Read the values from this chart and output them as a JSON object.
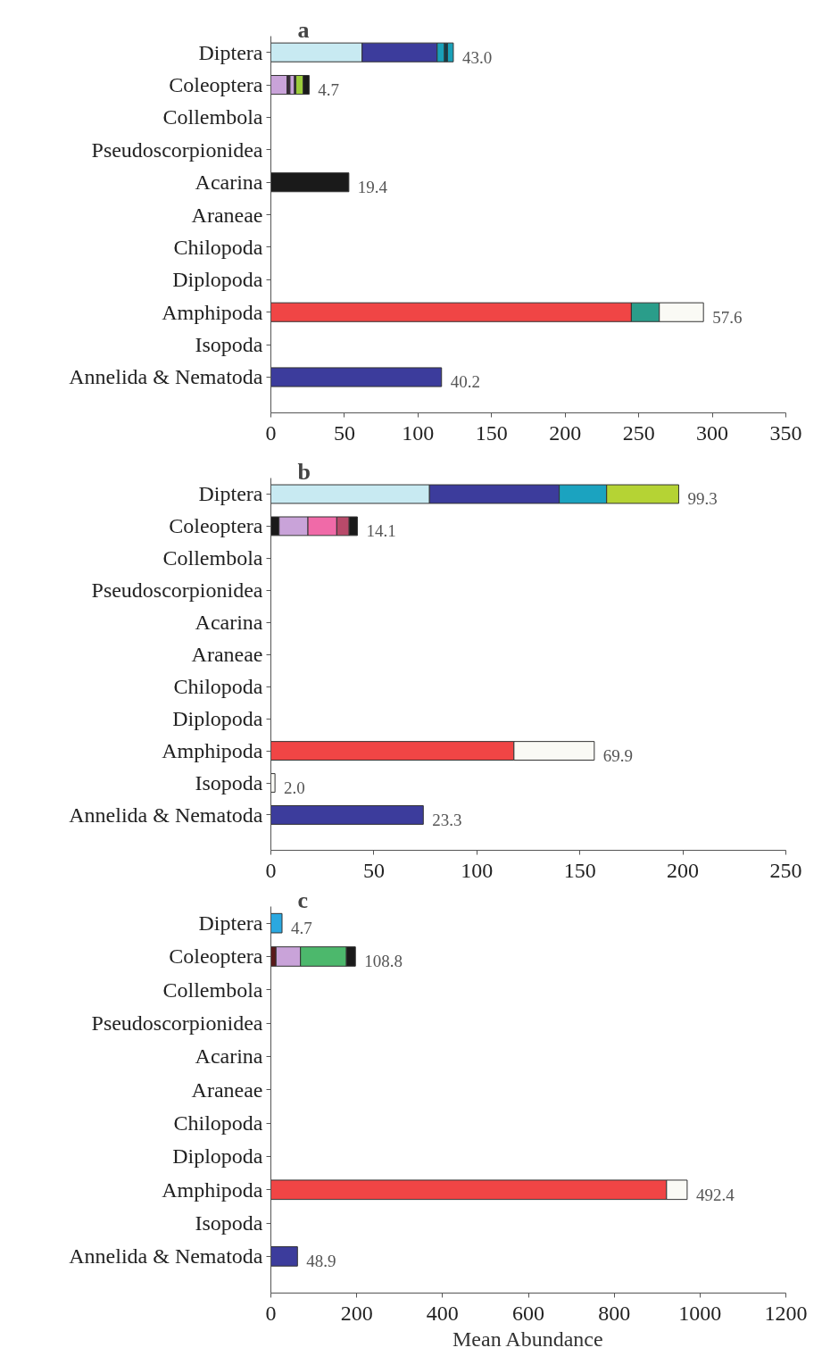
{
  "chart_data": [
    {
      "type": "bar",
      "orientation": "horizontal",
      "stacked": true,
      "title": "a",
      "categories": [
        "Diptera",
        "Coleoptera",
        "Collembola",
        "Pseudoscorpionidea",
        "Acarina",
        "Araneae",
        "Chilopoda",
        "Diplopoda",
        "Amphipoda",
        "Isopoda",
        "Annelida & Nematoda"
      ],
      "xlim": [
        0,
        350
      ],
      "xticks": [
        0,
        50,
        100,
        150,
        200,
        250,
        300,
        350
      ],
      "grid": false,
      "series": [
        {
          "color": "#c8eaf2",
          "values": [
            62,
            null,
            null,
            null,
            null,
            null,
            null,
            null,
            null,
            null,
            null
          ]
        },
        {
          "color": "#3c3c9c",
          "values": [
            51,
            null,
            null,
            null,
            null,
            null,
            null,
            null,
            null,
            null,
            116
          ]
        },
        {
          "color": "#1aa0b8",
          "values": [
            5,
            null,
            null,
            null,
            null,
            null,
            null,
            null,
            null,
            null,
            null
          ]
        },
        {
          "color": "#0f3f4f",
          "values": [
            2,
            null,
            null,
            null,
            null,
            null,
            null,
            null,
            null,
            null,
            null
          ]
        },
        {
          "color": "#1aa0b8",
          "values": [
            4,
            null,
            null,
            null,
            null,
            null,
            null,
            null,
            null,
            null,
            null
          ]
        },
        {
          "color": "#c9a3d9",
          "values": [
            null,
            11,
            null,
            null,
            null,
            null,
            null,
            null,
            null,
            null,
            null
          ]
        },
        {
          "color": "#3a2a3a",
          "values": [
            null,
            2,
            null,
            null,
            null,
            null,
            null,
            null,
            null,
            null,
            null
          ]
        },
        {
          "color": "#c9a3d9",
          "values": [
            null,
            3,
            null,
            null,
            null,
            null,
            null,
            null,
            null,
            null,
            null
          ]
        },
        {
          "color": "#3a2a3a",
          "values": [
            null,
            1,
            null,
            null,
            null,
            null,
            null,
            null,
            null,
            null,
            null
          ]
        },
        {
          "color": "#9ccc3c",
          "values": [
            null,
            5,
            null,
            null,
            null,
            null,
            null,
            null,
            null,
            null,
            null
          ]
        },
        {
          "color": "#1a1a1a",
          "values": [
            null,
            4,
            null,
            null,
            53,
            null,
            null,
            null,
            null,
            null,
            null
          ]
        },
        {
          "color": "#f04545",
          "values": [
            null,
            null,
            null,
            null,
            null,
            null,
            null,
            null,
            245,
            null,
            null
          ]
        },
        {
          "color": "#2a9d8a",
          "values": [
            null,
            null,
            null,
            null,
            null,
            null,
            null,
            null,
            19,
            null,
            null
          ]
        },
        {
          "color": "#fafaf5",
          "values": [
            null,
            null,
            null,
            null,
            null,
            null,
            null,
            null,
            30,
            null,
            null
          ]
        }
      ],
      "annotations": [
        {
          "text": "43.0",
          "x": 124,
          "y": "Diptera"
        },
        {
          "text": "4.7",
          "x": 26,
          "y": "Coleoptera"
        },
        {
          "text": "19.4",
          "x": 53,
          "y": "Acarina"
        },
        {
          "text": "57.6",
          "x": 294,
          "y": "Amphipoda"
        },
        {
          "text": "40.2",
          "x": 116,
          "y": "Annelida & Nematoda"
        }
      ]
    },
    {
      "type": "bar",
      "orientation": "horizontal",
      "stacked": true,
      "title": "b",
      "categories": [
        "Diptera",
        "Coleoptera",
        "Collembola",
        "Pseudoscorpionidea",
        "Acarina",
        "Araneae",
        "Chilopoda",
        "Diplopoda",
        "Amphipoda",
        "Isopoda",
        "Annelida & Nematoda"
      ],
      "xlim": [
        0,
        250
      ],
      "xticks": [
        0,
        50,
        100,
        150,
        200,
        250
      ],
      "grid": false,
      "series": [
        {
          "color": "#1a1a1a",
          "values": [
            null,
            4,
            null,
            null,
            null,
            null,
            null,
            null,
            null,
            null,
            null
          ]
        },
        {
          "color": "#c8eaf2",
          "values": [
            77,
            null,
            null,
            null,
            null,
            null,
            null,
            null,
            null,
            null,
            null
          ]
        },
        {
          "color": "#3c3c9c",
          "values": [
            63,
            null,
            null,
            null,
            null,
            null,
            null,
            null,
            null,
            null,
            74
          ]
        },
        {
          "color": "#1ba3c0",
          "values": [
            23,
            null,
            null,
            null,
            null,
            null,
            null,
            null,
            null,
            null,
            null
          ]
        },
        {
          "color": "#b5d334",
          "values": [
            35,
            null,
            null,
            null,
            null,
            null,
            null,
            null,
            null,
            null,
            null
          ]
        },
        {
          "color": "#c9a3d9",
          "values": [
            null,
            14,
            null,
            null,
            null,
            null,
            null,
            null,
            null,
            null,
            null
          ]
        },
        {
          "color": "#f06aa8",
          "values": [
            null,
            14,
            null,
            null,
            null,
            null,
            null,
            null,
            null,
            null,
            null
          ]
        },
        {
          "color": "#b84a6a",
          "values": [
            null,
            6,
            null,
            null,
            null,
            null,
            null,
            null,
            null,
            null,
            null
          ]
        },
        {
          "color": "#1a1a1a",
          "values": [
            null,
            4,
            null,
            null,
            null,
            null,
            null,
            null,
            null,
            null,
            null
          ]
        },
        {
          "color": "#f04545",
          "values": [
            null,
            null,
            null,
            null,
            null,
            null,
            null,
            null,
            118,
            null,
            null
          ]
        },
        {
          "color": "#fafaf5",
          "values": [
            null,
            null,
            null,
            null,
            null,
            null,
            null,
            null,
            39,
            2,
            null
          ]
        }
      ],
      "annotations": [
        {
          "text": "99.3",
          "x": 198,
          "y": "Diptera"
        },
        {
          "text": "14.1",
          "x": 42,
          "y": "Coleoptera"
        },
        {
          "text": "69.9",
          "x": 157,
          "y": "Amphipoda"
        },
        {
          "text": "2.0",
          "x": 2,
          "y": "Isopoda"
        },
        {
          "text": "23.3",
          "x": 74,
          "y": "Annelida & Nematoda"
        }
      ]
    },
    {
      "type": "bar",
      "orientation": "horizontal",
      "stacked": true,
      "title": "c",
      "xlabel": "Mean Abundance",
      "categories": [
        "Diptera",
        "Coleoptera",
        "Collembola",
        "Pseudoscorpionidea",
        "Acarina",
        "Araneae",
        "Chilopoda",
        "Diplopoda",
        "Amphipoda",
        "Isopoda",
        "Annelida & Nematoda"
      ],
      "xlim": [
        0,
        1200
      ],
      "xticks": [
        0,
        200,
        400,
        600,
        800,
        1000,
        1200
      ],
      "grid": false,
      "series": [
        {
          "color": "#2aa8e0",
          "values": [
            26,
            null,
            null,
            null,
            null,
            null,
            null,
            null,
            null,
            null,
            null
          ]
        },
        {
          "color": "#5a1a1a",
          "values": [
            null,
            12,
            null,
            null,
            null,
            null,
            null,
            null,
            null,
            null,
            null
          ]
        },
        {
          "color": "#c9a3d9",
          "values": [
            null,
            57,
            null,
            null,
            null,
            null,
            null,
            null,
            null,
            null,
            null
          ]
        },
        {
          "color": "#4cb86c",
          "values": [
            null,
            107,
            null,
            null,
            null,
            null,
            null,
            null,
            null,
            null,
            null
          ]
        },
        {
          "color": "#1a1a1a",
          "values": [
            null,
            21,
            null,
            null,
            null,
            null,
            null,
            null,
            null,
            null,
            null
          ]
        },
        {
          "color": "#f04545",
          "values": [
            null,
            null,
            null,
            null,
            null,
            null,
            null,
            null,
            922,
            null,
            null
          ]
        },
        {
          "color": "#fafaf5",
          "values": [
            null,
            null,
            null,
            null,
            null,
            null,
            null,
            null,
            48,
            null,
            null
          ]
        },
        {
          "color": "#3c3c9c",
          "values": [
            null,
            null,
            null,
            null,
            null,
            null,
            null,
            null,
            null,
            null,
            62
          ]
        }
      ],
      "annotations": [
        {
          "text": "4.7",
          "x": 26,
          "y": "Diptera"
        },
        {
          "text": "108.8",
          "x": 197,
          "y": "Coleoptera"
        },
        {
          "text": "492.4",
          "x": 970,
          "y": "Amphipoda"
        },
        {
          "text": "48.9",
          "x": 62,
          "y": "Annelida & Nematoda"
        }
      ]
    }
  ]
}
